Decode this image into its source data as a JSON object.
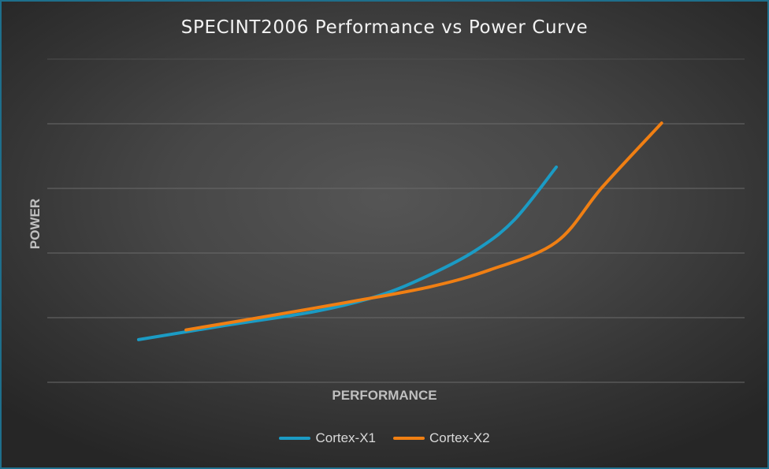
{
  "chart_data": {
    "type": "line",
    "title": "SPECINT2006 Performance vs Power Curve",
    "xlabel": "PERFORMANCE",
    "ylabel": "POWER",
    "xlim": [
      0,
      100
    ],
    "ylim": [
      0,
      100
    ],
    "grid": true,
    "legend": "bottom",
    "series": [
      {
        "name": "Cortex-X1",
        "color": "#1b9bc4",
        "x": [
          13.1,
          25.0,
          38.6,
          47.7,
          55.0,
          61.5,
          67.0,
          73.0
        ],
        "y": [
          13.2,
          17.4,
          22.0,
          26.9,
          33.4,
          40.9,
          50.3,
          66.6
        ]
      },
      {
        "name": "Cortex-X2",
        "color": "#f07f13",
        "x": [
          19.9,
          31.2,
          43.7,
          55.0,
          63.5,
          73.0,
          79.6,
          88.1
        ],
        "y": [
          16.2,
          20.3,
          25.0,
          29.6,
          34.8,
          43.4,
          60.4,
          80.2
        ]
      }
    ]
  }
}
